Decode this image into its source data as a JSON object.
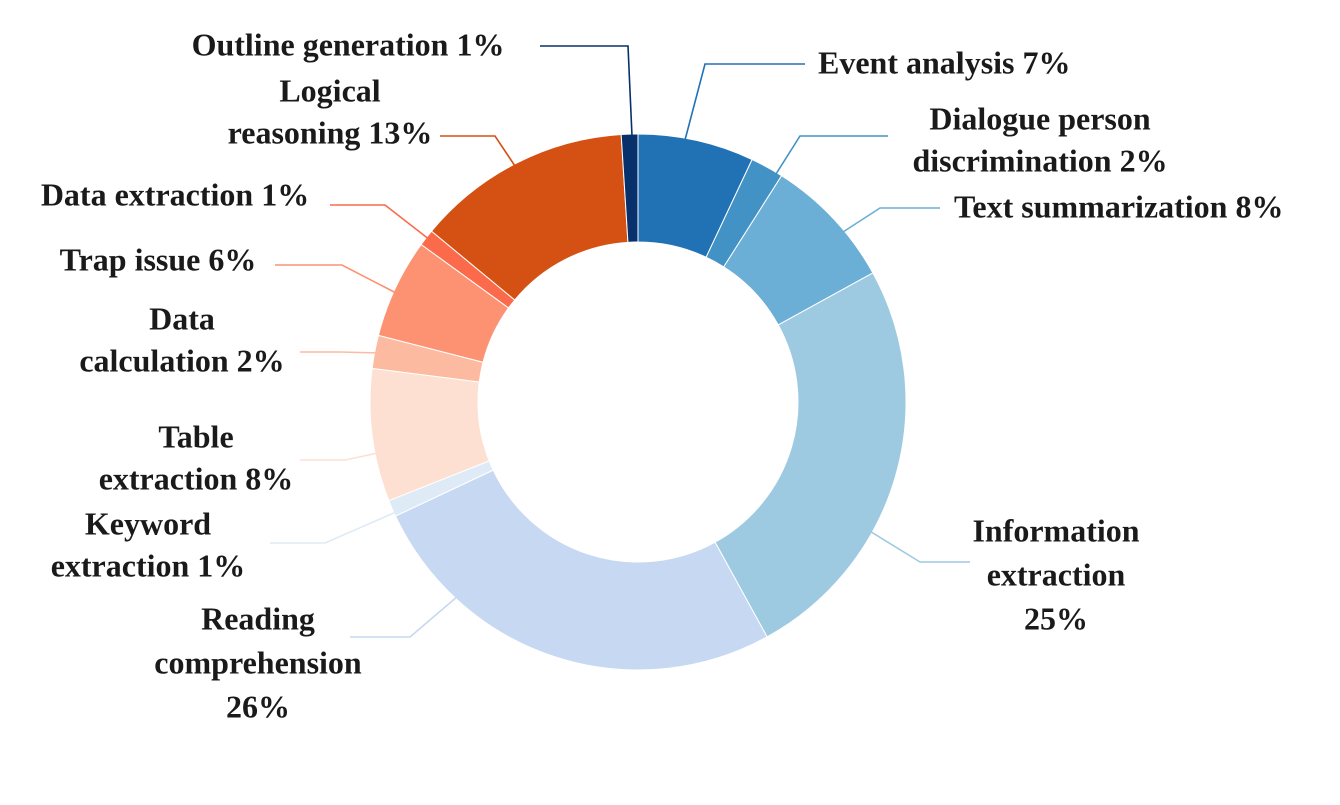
{
  "chart_data": {
    "type": "pie",
    "variant": "donut",
    "legend": "none",
    "slices": [
      {
        "label_lines": [
          "Event analysis 7%"
        ],
        "category": "Event analysis",
        "value": 7,
        "color": "#2171b5"
      },
      {
        "label_lines": [
          "Dialogue person",
          "discrimination 2%"
        ],
        "category": "Dialogue person discrimination",
        "value": 2,
        "color": "#4292c6"
      },
      {
        "label_lines": [
          "Text summarization 8%"
        ],
        "category": "Text summarization",
        "value": 8,
        "color": "#6baed6"
      },
      {
        "label_lines": [
          "Information",
          "extraction",
          "25%"
        ],
        "category": "Information extraction",
        "value": 25,
        "color": "#9ecae1"
      },
      {
        "label_lines": [
          "Reading",
          "comprehension",
          "26%"
        ],
        "category": "Reading comprehension",
        "value": 26,
        "color": "#c6d8f2"
      },
      {
        "label_lines": [
          "Keyword",
          "extraction 1%"
        ],
        "category": "Keyword extraction",
        "value": 1,
        "color": "#deebf7"
      },
      {
        "label_lines": [
          "Table",
          "extraction 8%"
        ],
        "category": "Table extraction",
        "value": 8,
        "color": "#fde0d2"
      },
      {
        "label_lines": [
          "Data",
          "calculation 2%"
        ],
        "category": "Data calculation",
        "value": 2,
        "color": "#fcbba1"
      },
      {
        "label_lines": [
          "Trap issue 6%"
        ],
        "category": "Trap issue",
        "value": 6,
        "color": "#fc9272"
      },
      {
        "label_lines": [
          "Data extraction 1%"
        ],
        "category": "Data extraction",
        "value": 1,
        "color": "#fb6a4a"
      },
      {
        "label_lines": [
          "Logical",
          "reasoning 13%"
        ],
        "category": "Logical reasoning",
        "value": 13,
        "color": "#d45113"
      },
      {
        "label_lines": [
          "Outline generation 1%"
        ],
        "category": "Outline generation",
        "value": 1,
        "color": "#08306b"
      }
    ]
  }
}
